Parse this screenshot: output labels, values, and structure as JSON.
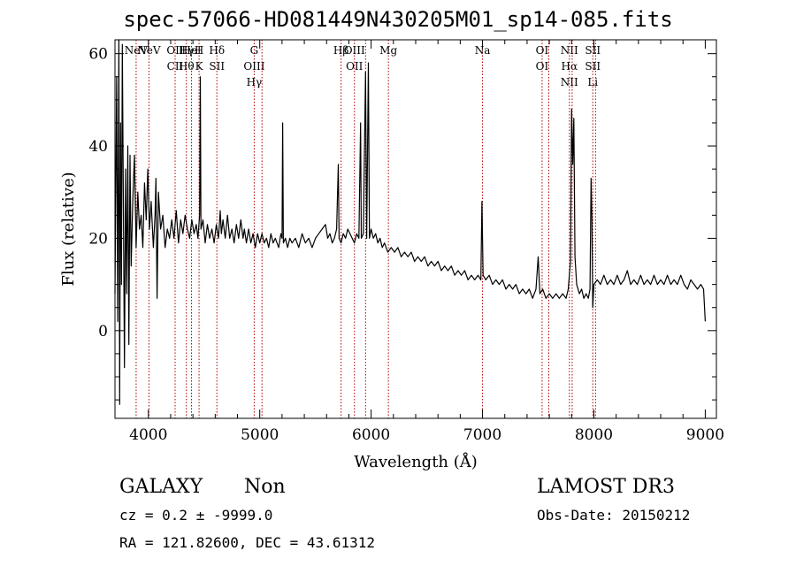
{
  "header": {
    "title": "spec-57066-HD081449N430205M01_sp14-085.fits"
  },
  "chart_data": {
    "type": "line",
    "title": "spec-57066-HD081449N430205M01_sp14-085.fits",
    "xlabel": "Wavelength (Å)",
    "ylabel": "Flux (relative)",
    "xlim": [
      3700,
      9100
    ],
    "ylim": [
      -19,
      63
    ],
    "xticks": [
      4000,
      5000,
      6000,
      7000,
      8000,
      9000
    ],
    "yticks": [
      0,
      20,
      40,
      60
    ],
    "grid": false,
    "series": [
      {
        "points": [
          [
            3700,
            8
          ],
          [
            3715,
            55
          ],
          [
            3725,
            2
          ],
          [
            3735,
            63
          ],
          [
            3742,
            -16
          ],
          [
            3750,
            45
          ],
          [
            3758,
            10
          ],
          [
            3766,
            62
          ],
          [
            3775,
            30
          ],
          [
            3785,
            -8
          ],
          [
            3795,
            35
          ],
          [
            3805,
            8
          ],
          [
            3815,
            40
          ],
          [
            3825,
            -3
          ],
          [
            3835,
            38
          ],
          [
            3845,
            14
          ],
          [
            3860,
            28
          ],
          [
            3875,
            38
          ],
          [
            3890,
            18
          ],
          [
            3905,
            30
          ],
          [
            3920,
            22
          ],
          [
            3935,
            25
          ],
          [
            3950,
            18
          ],
          [
            3965,
            32
          ],
          [
            3980,
            24
          ],
          [
            3995,
            35
          ],
          [
            4010,
            22
          ],
          [
            4025,
            28
          ],
          [
            4045,
            18
          ],
          [
            4060,
            25
          ],
          [
            4068,
            33
          ],
          [
            4078,
            7
          ],
          [
            4090,
            30
          ],
          [
            4110,
            22
          ],
          [
            4130,
            25
          ],
          [
            4150,
            18
          ],
          [
            4170,
            22
          ],
          [
            4190,
            20
          ],
          [
            4210,
            24
          ],
          [
            4230,
            20
          ],
          [
            4250,
            26
          ],
          [
            4270,
            19
          ],
          [
            4290,
            24
          ],
          [
            4310,
            21
          ],
          [
            4330,
            25
          ],
          [
            4350,
            22
          ],
          [
            4370,
            20
          ],
          [
            4390,
            24
          ],
          [
            4410,
            21
          ],
          [
            4430,
            23
          ],
          [
            4445,
            20
          ],
          [
            4460,
            25
          ],
          [
            4466,
            55
          ],
          [
            4472,
            22
          ],
          [
            4490,
            24
          ],
          [
            4510,
            19
          ],
          [
            4530,
            23
          ],
          [
            4550,
            20
          ],
          [
            4570,
            22
          ],
          [
            4590,
            19
          ],
          [
            4610,
            23
          ],
          [
            4630,
            20
          ],
          [
            4645,
            26
          ],
          [
            4655,
            21
          ],
          [
            4670,
            24
          ],
          [
            4690,
            20
          ],
          [
            4710,
            25
          ],
          [
            4730,
            20
          ],
          [
            4750,
            22
          ],
          [
            4770,
            19
          ],
          [
            4790,
            23
          ],
          [
            4810,
            20
          ],
          [
            4830,
            24
          ],
          [
            4850,
            20
          ],
          [
            4862,
            22
          ],
          [
            4880,
            19
          ],
          [
            4900,
            22
          ],
          [
            4920,
            19
          ],
          [
            4940,
            21
          ],
          [
            4960,
            18
          ],
          [
            4980,
            21
          ],
          [
            5000,
            19
          ],
          [
            5020,
            21
          ],
          [
            5040,
            19
          ],
          [
            5060,
            20
          ],
          [
            5080,
            18
          ],
          [
            5100,
            21
          ],
          [
            5120,
            19
          ],
          [
            5140,
            20
          ],
          [
            5170,
            18
          ],
          [
            5190,
            21
          ],
          [
            5200,
            20
          ],
          [
            5206,
            45
          ],
          [
            5212,
            19
          ],
          [
            5230,
            20
          ],
          [
            5250,
            18
          ],
          [
            5270,
            20
          ],
          [
            5290,
            19
          ],
          [
            5320,
            20
          ],
          [
            5350,
            18
          ],
          [
            5380,
            21
          ],
          [
            5410,
            19
          ],
          [
            5440,
            20
          ],
          [
            5470,
            18
          ],
          [
            5500,
            20
          ],
          [
            5530,
            21
          ],
          [
            5560,
            22
          ],
          [
            5590,
            23
          ],
          [
            5610,
            20
          ],
          [
            5630,
            21
          ],
          [
            5650,
            19
          ],
          [
            5670,
            20
          ],
          [
            5690,
            22
          ],
          [
            5705,
            36
          ],
          [
            5712,
            20
          ],
          [
            5730,
            19
          ],
          [
            5750,
            21
          ],
          [
            5770,
            20
          ],
          [
            5790,
            22
          ],
          [
            5810,
            21
          ],
          [
            5830,
            20
          ],
          [
            5850,
            19
          ],
          [
            5870,
            21
          ],
          [
            5890,
            20
          ],
          [
            5905,
            45
          ],
          [
            5912,
            20
          ],
          [
            5930,
            21
          ],
          [
            5950,
            56
          ],
          [
            5960,
            20
          ],
          [
            5975,
            58
          ],
          [
            5985,
            20
          ],
          [
            6000,
            22
          ],
          [
            6020,
            20
          ],
          [
            6040,
            21
          ],
          [
            6060,
            19
          ],
          [
            6080,
            20
          ],
          [
            6100,
            18
          ],
          [
            6120,
            19
          ],
          [
            6150,
            17
          ],
          [
            6180,
            18
          ],
          [
            6210,
            17
          ],
          [
            6240,
            18
          ],
          [
            6270,
            16
          ],
          [
            6300,
            17
          ],
          [
            6330,
            16
          ],
          [
            6360,
            17
          ],
          [
            6390,
            15
          ],
          [
            6420,
            16
          ],
          [
            6450,
            15
          ],
          [
            6480,
            16
          ],
          [
            6510,
            14
          ],
          [
            6540,
            15
          ],
          [
            6570,
            14
          ],
          [
            6600,
            15
          ],
          [
            6630,
            13
          ],
          [
            6660,
            14
          ],
          [
            6690,
            13
          ],
          [
            6720,
            14
          ],
          [
            6750,
            12
          ],
          [
            6780,
            13
          ],
          [
            6810,
            12
          ],
          [
            6840,
            13
          ],
          [
            6870,
            11
          ],
          [
            6900,
            12
          ],
          [
            6930,
            11
          ],
          [
            6960,
            12
          ],
          [
            6985,
            11
          ],
          [
            6995,
            28
          ],
          [
            7005,
            12
          ],
          [
            7030,
            11
          ],
          [
            7060,
            12
          ],
          [
            7090,
            10
          ],
          [
            7120,
            11
          ],
          [
            7150,
            10
          ],
          [
            7180,
            11
          ],
          [
            7210,
            9
          ],
          [
            7240,
            10
          ],
          [
            7270,
            9
          ],
          [
            7300,
            10
          ],
          [
            7330,
            8
          ],
          [
            7360,
            9
          ],
          [
            7390,
            8
          ],
          [
            7420,
            9
          ],
          [
            7450,
            7
          ],
          [
            7480,
            9
          ],
          [
            7500,
            16
          ],
          [
            7515,
            8
          ],
          [
            7540,
            9
          ],
          [
            7570,
            7
          ],
          [
            7600,
            8
          ],
          [
            7630,
            7
          ],
          [
            7660,
            8
          ],
          [
            7690,
            7
          ],
          [
            7720,
            8
          ],
          [
            7750,
            7
          ],
          [
            7770,
            9
          ],
          [
            7790,
            15
          ],
          [
            7800,
            48
          ],
          [
            7810,
            36
          ],
          [
            7820,
            46
          ],
          [
            7830,
            16
          ],
          [
            7845,
            10
          ],
          [
            7870,
            8
          ],
          [
            7890,
            9
          ],
          [
            7910,
            7
          ],
          [
            7930,
            8
          ],
          [
            7950,
            7
          ],
          [
            7965,
            9
          ],
          [
            7975,
            33
          ],
          [
            7983,
            24
          ],
          [
            7990,
            5
          ],
          [
            8000,
            10
          ],
          [
            8030,
            11
          ],
          [
            8060,
            10
          ],
          [
            8090,
            12
          ],
          [
            8120,
            10
          ],
          [
            8150,
            11
          ],
          [
            8180,
            10
          ],
          [
            8210,
            12
          ],
          [
            8240,
            10
          ],
          [
            8270,
            11
          ],
          [
            8300,
            13
          ],
          [
            8330,
            10
          ],
          [
            8360,
            11
          ],
          [
            8390,
            10
          ],
          [
            8420,
            12
          ],
          [
            8450,
            10
          ],
          [
            8480,
            11
          ],
          [
            8510,
            10
          ],
          [
            8540,
            12
          ],
          [
            8570,
            10
          ],
          [
            8600,
            11
          ],
          [
            8630,
            10
          ],
          [
            8660,
            12
          ],
          [
            8690,
            10
          ],
          [
            8720,
            11
          ],
          [
            8750,
            10
          ],
          [
            8780,
            12
          ],
          [
            8810,
            10
          ],
          [
            8840,
            9
          ],
          [
            8870,
            11
          ],
          [
            8900,
            10
          ],
          [
            8930,
            9
          ],
          [
            8960,
            10
          ],
          [
            8985,
            9
          ],
          [
            9000,
            2
          ]
        ]
      }
    ],
    "lines": [
      {
        "wl": 3890,
        "labels": [
          "NeV"
        ]
      },
      {
        "wl": 4005,
        "labels": [
          "NeV"
        ]
      },
      {
        "wl": 4240,
        "labels": [
          "OII",
          "CII"
        ]
      },
      {
        "wl": 4341,
        "labels": [
          "Hγ",
          "Hθ"
        ]
      },
      {
        "wl": 4387,
        "labels": [
          "HeI"
        ]
      },
      {
        "wl": 4455,
        "labels": [
          "H",
          "K"
        ]
      },
      {
        "wl": 4615,
        "labels": [
          "Hδ",
          "SII"
        ]
      },
      {
        "wl": 4950,
        "labels": [
          "G",
          "OIII",
          "Hγ"
        ]
      },
      {
        "wl": 5020,
        "labels": []
      },
      {
        "wl": 5730,
        "labels": [
          "Hβ"
        ]
      },
      {
        "wl": 5850,
        "labels": [
          "OIII",
          "OII"
        ]
      },
      {
        "wl": 5950,
        "labels": []
      },
      {
        "wl": 6155,
        "labels": [
          "Mg"
        ]
      },
      {
        "wl": 7000,
        "labels": [
          "Na"
        ]
      },
      {
        "wl": 7535,
        "labels": [
          "OI",
          "OI"
        ]
      },
      {
        "wl": 7595,
        "labels": []
      },
      {
        "wl": 7780,
        "labels": [
          "NII",
          "Hα",
          "NII"
        ]
      },
      {
        "wl": 7805,
        "labels": []
      },
      {
        "wl": 7990,
        "labels": [
          "SII",
          "SII",
          "Li"
        ]
      },
      {
        "wl": 8015,
        "labels": []
      }
    ]
  },
  "info": {
    "object_type": "GALAXY",
    "subclass": "Non",
    "cz": "cz = 0.2 ± -9999.0",
    "coords": "RA = 121.82600, DEC =  43.61312",
    "survey": "LAMOST DR3",
    "obs_date": "Obs-Date: 20150212"
  }
}
